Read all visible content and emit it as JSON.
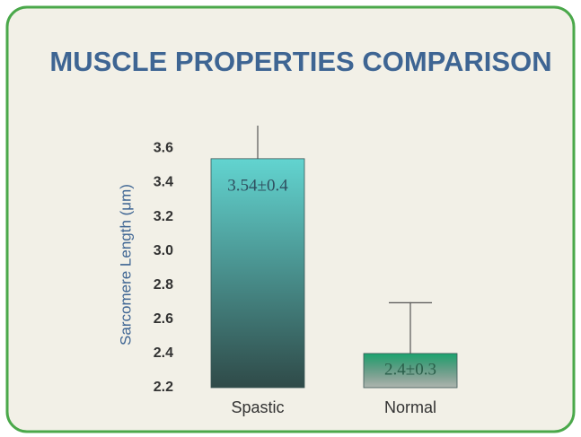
{
  "chart_data": {
    "type": "bar",
    "title": "MUSCLE PROPERTIES COMPARISON",
    "ylabel": "Sarcomere Length (μm)",
    "categories": [
      "Spastic",
      "Normal"
    ],
    "values": [
      3.54,
      2.4
    ],
    "errors": [
      0.4,
      0.3
    ],
    "value_labels": [
      "3.54±0.4",
      "2.4±0.3"
    ],
    "colors": [
      "#62d4d0",
      "#1aa56e"
    ],
    "ylim": [
      2.2,
      3.7
    ],
    "yticks": [
      2.2,
      2.4,
      2.6,
      2.8,
      {
        "value": 3.0,
        "label": "3.0"
      },
      3.2,
      3.4,
      3.6
    ],
    "grid": false
  }
}
